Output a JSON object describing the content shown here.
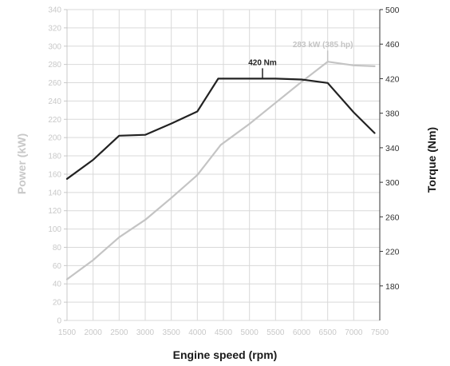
{
  "chart_data": {
    "type": "line",
    "title": "",
    "xlabel": "Engine speed (rpm)",
    "ylabel_left": "Power (kW)",
    "ylabel_right": "Torque (Nm)",
    "xlim": [
      1500,
      7500
    ],
    "ylim_left": [
      0,
      340
    ],
    "ylim_right": [
      140,
      500
    ],
    "x_ticks": [
      1500,
      2000,
      2500,
      3000,
      3500,
      4000,
      4500,
      5000,
      5500,
      6000,
      6500,
      7000,
      7500
    ],
    "y_left_ticks": [
      0,
      20,
      40,
      60,
      80,
      100,
      120,
      140,
      160,
      180,
      200,
      220,
      240,
      260,
      280,
      300,
      320,
      340
    ],
    "y_right_ticks": [
      180,
      220,
      260,
      300,
      340,
      380,
      420,
      460,
      500
    ],
    "grid": true,
    "colors": {
      "power": "#c4c4c4",
      "torque": "#222222",
      "grid": "#d9d9d9"
    },
    "series": [
      {
        "name": "Power (kW)",
        "axis": "left",
        "x": [
          1500,
          2000,
          2500,
          3000,
          3500,
          4000,
          4450,
          5000,
          5500,
          6000,
          6500,
          7000,
          7400
        ],
        "values": [
          45,
          66,
          91,
          110,
          134,
          159,
          192,
          215,
          238,
          261,
          283,
          279,
          278
        ]
      },
      {
        "name": "Torque (Nm)",
        "axis": "right",
        "x": [
          1500,
          2000,
          2500,
          3000,
          3500,
          4000,
          4400,
          5000,
          5500,
          6000,
          6500,
          7000,
          7400
        ],
        "values": [
          304,
          326,
          354,
          355,
          368,
          382,
          420,
          420,
          420,
          419,
          415,
          381,
          357
        ]
      }
    ],
    "annotations": [
      {
        "text": "420 Nm",
        "series": "Torque (Nm)",
        "x": 5250,
        "y": 420
      },
      {
        "text": "283 kW (385 hp)",
        "series": "Power (kW)",
        "x": 6500,
        "y": 283
      }
    ]
  }
}
